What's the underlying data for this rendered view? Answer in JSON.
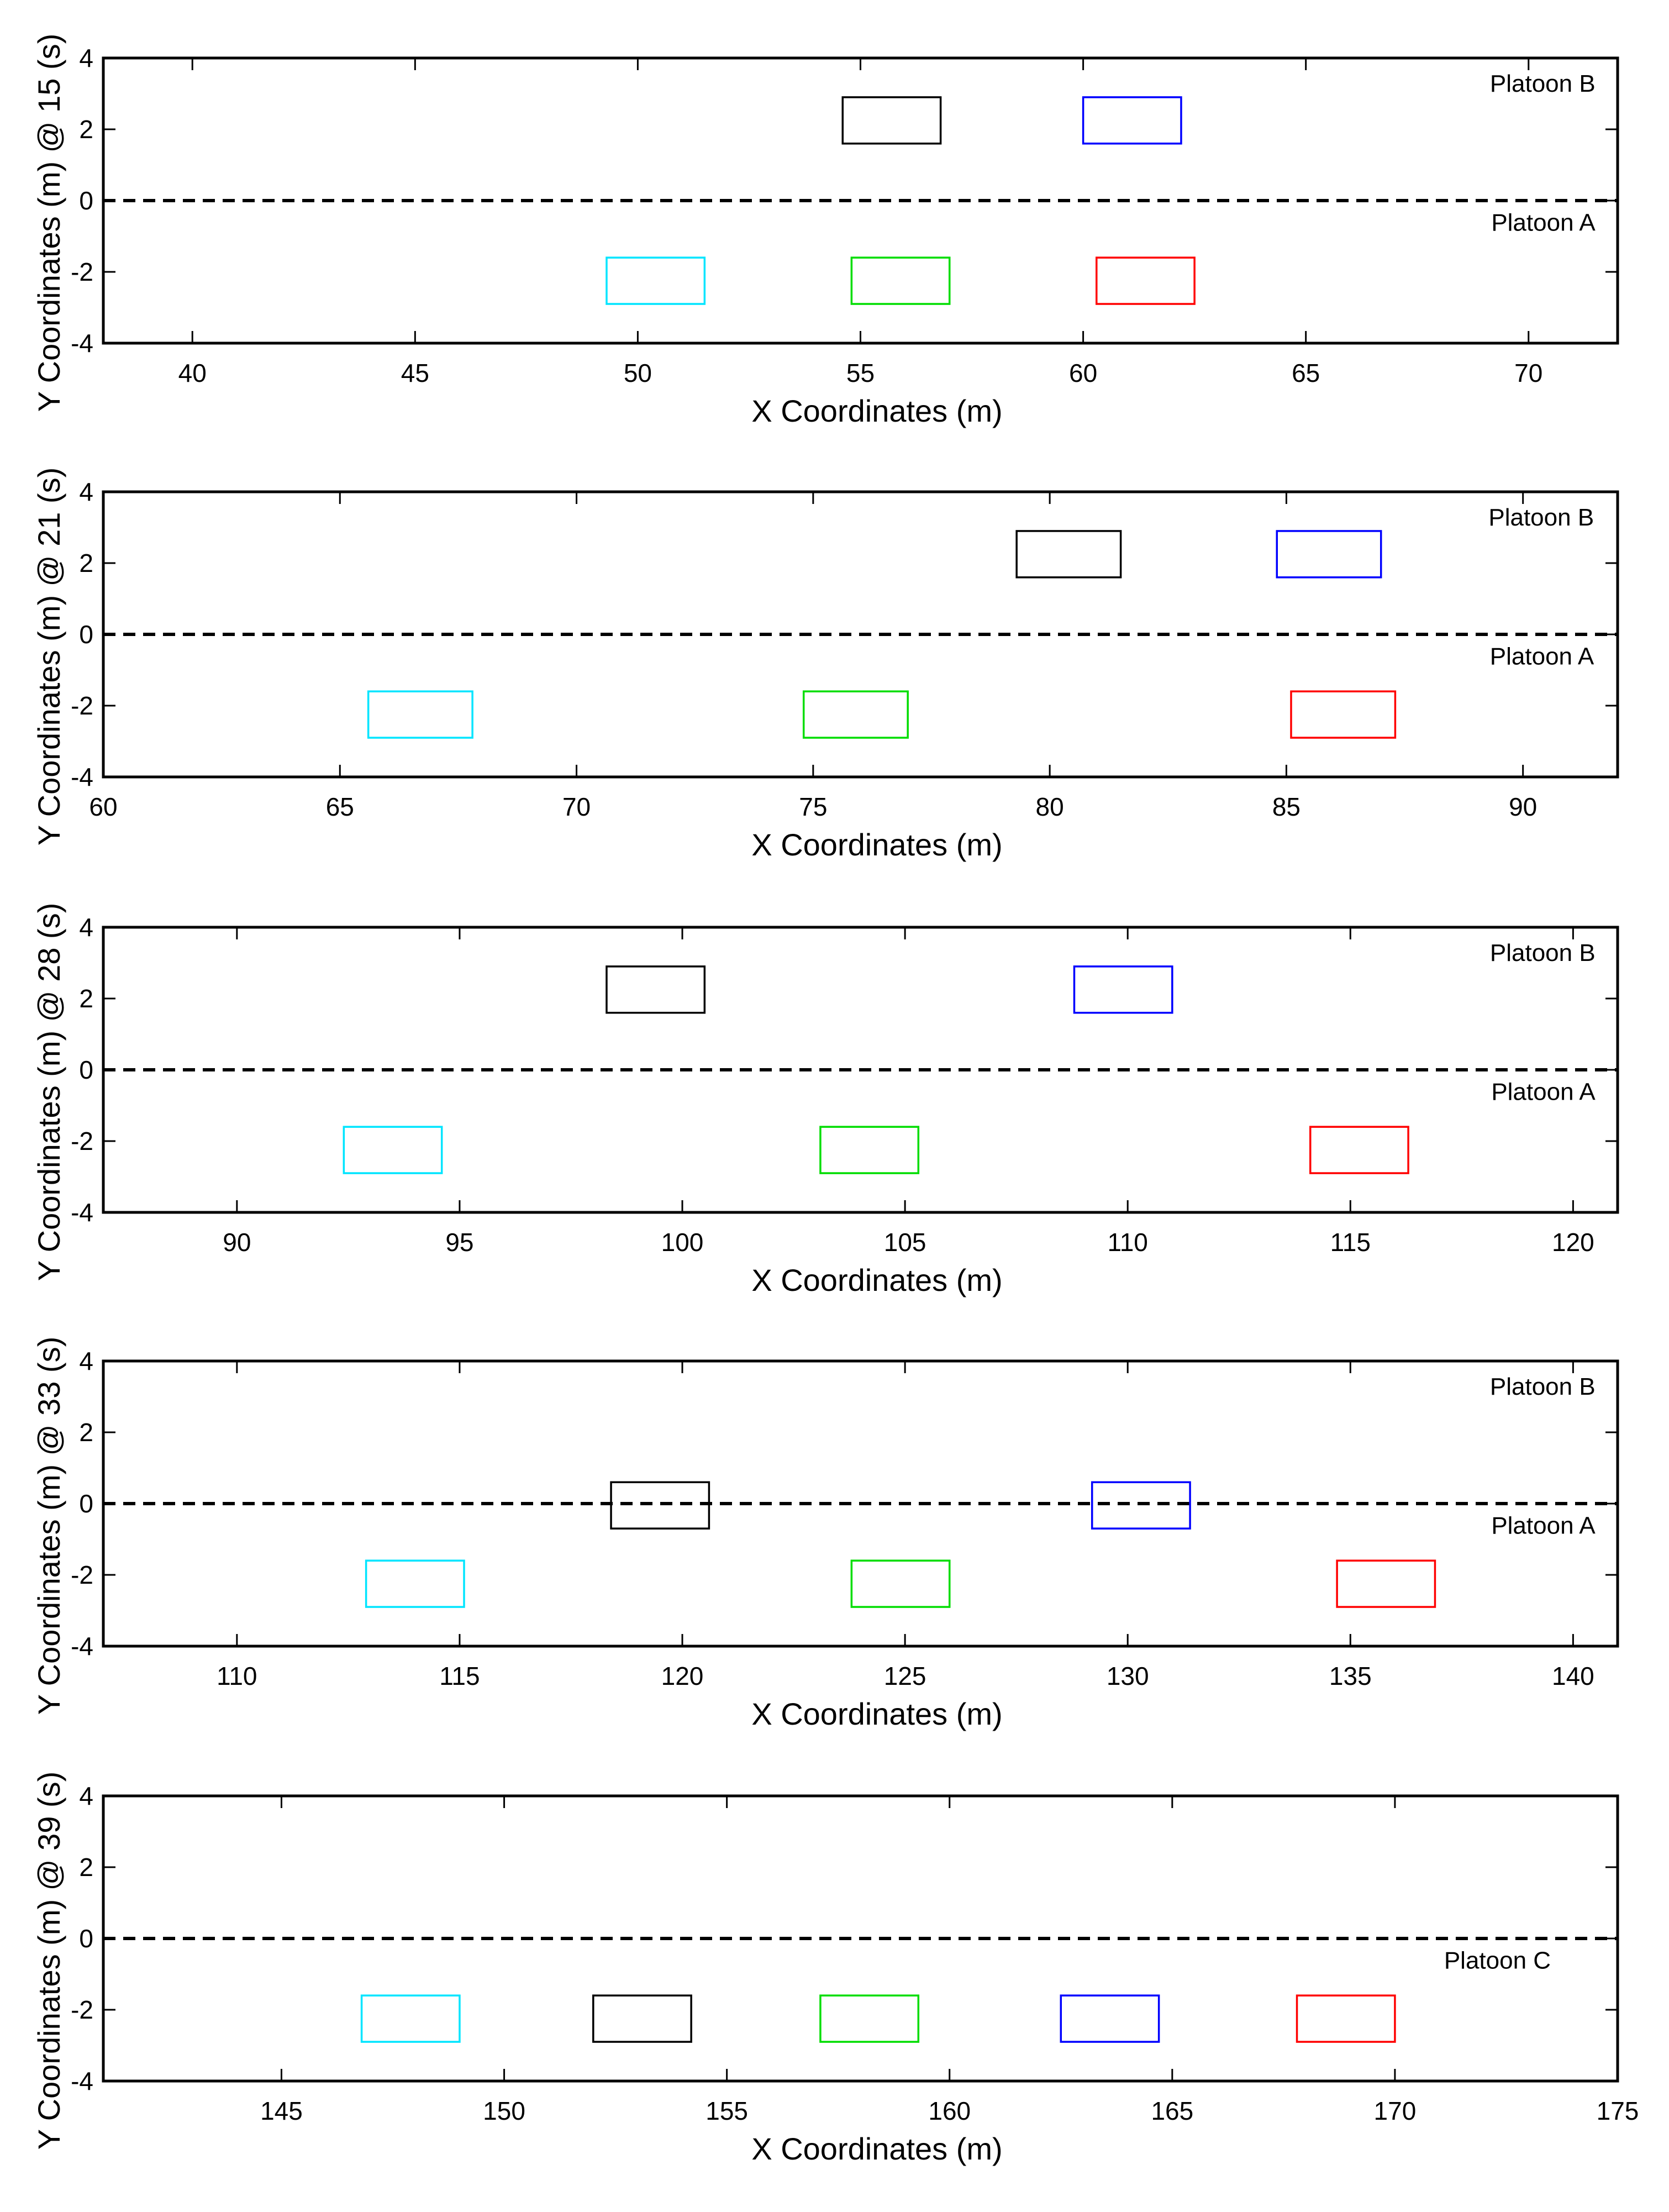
{
  "chart_data": [
    {
      "type": "scatter",
      "xlabel": "X Coordinates (m)",
      "ylabel": "Y Coordinates (m) @ 15 (s)",
      "xlim": [
        38,
        72
      ],
      "ylim": [
        -4,
        4
      ],
      "xticks": [
        40,
        45,
        50,
        55,
        60,
        65,
        70
      ],
      "yticks": [
        -4,
        -2,
        0,
        2,
        4
      ],
      "grid": false,
      "lane_divider_y": 0,
      "annotations": [
        {
          "text": "Platoon B",
          "x": 71.5,
          "y": 3.3
        },
        {
          "text": "Platoon A",
          "x": 71.5,
          "y": -0.6
        }
      ],
      "vehicles": [
        {
          "color": "#000000",
          "x": [
            54.6,
            56.8
          ],
          "y": [
            1.6,
            2.9
          ]
        },
        {
          "color": "#0000ff",
          "x": [
            60.0,
            62.2
          ],
          "y": [
            1.6,
            2.9
          ]
        },
        {
          "color": "#00e5ff",
          "x": [
            49.3,
            51.5
          ],
          "y": [
            -2.9,
            -1.6
          ]
        },
        {
          "color": "#00dd00",
          "x": [
            54.8,
            57.0
          ],
          "y": [
            -2.9,
            -1.6
          ]
        },
        {
          "color": "#ff0000",
          "x": [
            60.3,
            62.5
          ],
          "y": [
            -2.9,
            -1.6
          ]
        }
      ]
    },
    {
      "type": "scatter",
      "xlabel": "X Coordinates (m)",
      "ylabel": "Y Coordinates (m) @ 21 (s)",
      "xlim": [
        60,
        92
      ],
      "ylim": [
        -4,
        4
      ],
      "xticks": [
        60,
        65,
        70,
        75,
        80,
        85,
        90
      ],
      "yticks": [
        -4,
        -2,
        0,
        2,
        4
      ],
      "grid": false,
      "lane_divider_y": 0,
      "annotations": [
        {
          "text": "Platoon B",
          "x": 91.5,
          "y": 3.3
        },
        {
          "text": "Platoon A",
          "x": 91.5,
          "y": -0.6
        }
      ],
      "vehicles": [
        {
          "color": "#000000",
          "x": [
            79.3,
            81.5
          ],
          "y": [
            1.6,
            2.9
          ]
        },
        {
          "color": "#0000ff",
          "x": [
            84.8,
            87.0
          ],
          "y": [
            1.6,
            2.9
          ]
        },
        {
          "color": "#00e5ff",
          "x": [
            65.6,
            67.8
          ],
          "y": [
            -2.9,
            -1.6
          ]
        },
        {
          "color": "#00dd00",
          "x": [
            74.8,
            77.0
          ],
          "y": [
            -2.9,
            -1.6
          ]
        },
        {
          "color": "#ff0000",
          "x": [
            85.1,
            87.3
          ],
          "y": [
            -2.9,
            -1.6
          ]
        }
      ]
    },
    {
      "type": "scatter",
      "xlabel": "X Coordinates (m)",
      "ylabel": "Y Coordinates (m) @ 28 (s)",
      "xlim": [
        87,
        121
      ],
      "ylim": [
        -4,
        4
      ],
      "xticks": [
        90,
        95,
        100,
        105,
        110,
        115,
        120
      ],
      "yticks": [
        -4,
        -2,
        0,
        2,
        4
      ],
      "grid": false,
      "lane_divider_y": 0,
      "annotations": [
        {
          "text": "Platoon B",
          "x": 120.5,
          "y": 3.3
        },
        {
          "text": "Platoon A",
          "x": 120.5,
          "y": -0.6
        }
      ],
      "vehicles": [
        {
          "color": "#000000",
          "x": [
            98.3,
            100.5
          ],
          "y": [
            1.6,
            2.9
          ]
        },
        {
          "color": "#0000ff",
          "x": [
            108.8,
            111.0
          ],
          "y": [
            1.6,
            2.9
          ]
        },
        {
          "color": "#00e5ff",
          "x": [
            92.4,
            94.6
          ],
          "y": [
            -2.9,
            -1.6
          ]
        },
        {
          "color": "#00dd00",
          "x": [
            103.1,
            105.3
          ],
          "y": [
            -2.9,
            -1.6
          ]
        },
        {
          "color": "#ff0000",
          "x": [
            114.1,
            116.3
          ],
          "y": [
            -2.9,
            -1.6
          ]
        }
      ]
    },
    {
      "type": "scatter",
      "xlabel": "X Coordinates (m)",
      "ylabel": "Y Coordinates (m) @ 33 (s)",
      "xlim": [
        107,
        141
      ],
      "ylim": [
        -4,
        4
      ],
      "xticks": [
        110,
        115,
        120,
        125,
        130,
        135,
        140
      ],
      "yticks": [
        -4,
        -2,
        0,
        2,
        4
      ],
      "grid": false,
      "lane_divider_y": 0,
      "annotations": [
        {
          "text": "Platoon B",
          "x": 140.5,
          "y": 3.3
        },
        {
          "text": "Platoon A",
          "x": 140.5,
          "y": -0.6
        }
      ],
      "vehicles": [
        {
          "color": "#000000",
          "x": [
            118.4,
            120.6
          ],
          "y": [
            -0.7,
            0.6
          ]
        },
        {
          "color": "#0000ff",
          "x": [
            129.2,
            131.4
          ],
          "y": [
            -0.7,
            0.6
          ]
        },
        {
          "color": "#00e5ff",
          "x": [
            112.9,
            115.1
          ],
          "y": [
            -2.9,
            -1.6
          ]
        },
        {
          "color": "#00dd00",
          "x": [
            123.8,
            126.0
          ],
          "y": [
            -2.9,
            -1.6
          ]
        },
        {
          "color": "#ff0000",
          "x": [
            134.7,
            136.9
          ],
          "y": [
            -2.9,
            -1.6
          ]
        }
      ]
    },
    {
      "type": "scatter",
      "xlabel": "X Coordinates (m)",
      "ylabel": "Y Coordinates (m) @ 39 (s)",
      "xlim": [
        141,
        175
      ],
      "ylim": [
        -4,
        4
      ],
      "xticks": [
        145,
        150,
        155,
        160,
        165,
        170,
        175
      ],
      "yticks": [
        -4,
        -2,
        0,
        2,
        4
      ],
      "grid": false,
      "lane_divider_y": 0,
      "annotations": [
        {
          "text": "Platoon C",
          "x": 173.5,
          "y": -0.6
        }
      ],
      "vehicles": [
        {
          "color": "#00e5ff",
          "x": [
            146.8,
            149.0
          ],
          "y": [
            -2.9,
            -1.6
          ]
        },
        {
          "color": "#000000",
          "x": [
            152.0,
            154.2
          ],
          "y": [
            -2.9,
            -1.6
          ]
        },
        {
          "color": "#00dd00",
          "x": [
            157.1,
            159.3
          ],
          "y": [
            -2.9,
            -1.6
          ]
        },
        {
          "color": "#0000ff",
          "x": [
            162.5,
            164.7
          ],
          "y": [
            -2.9,
            -1.6
          ]
        },
        {
          "color": "#ff0000",
          "x": [
            167.8,
            170.0
          ],
          "y": [
            -2.9,
            -1.6
          ]
        }
      ]
    }
  ]
}
